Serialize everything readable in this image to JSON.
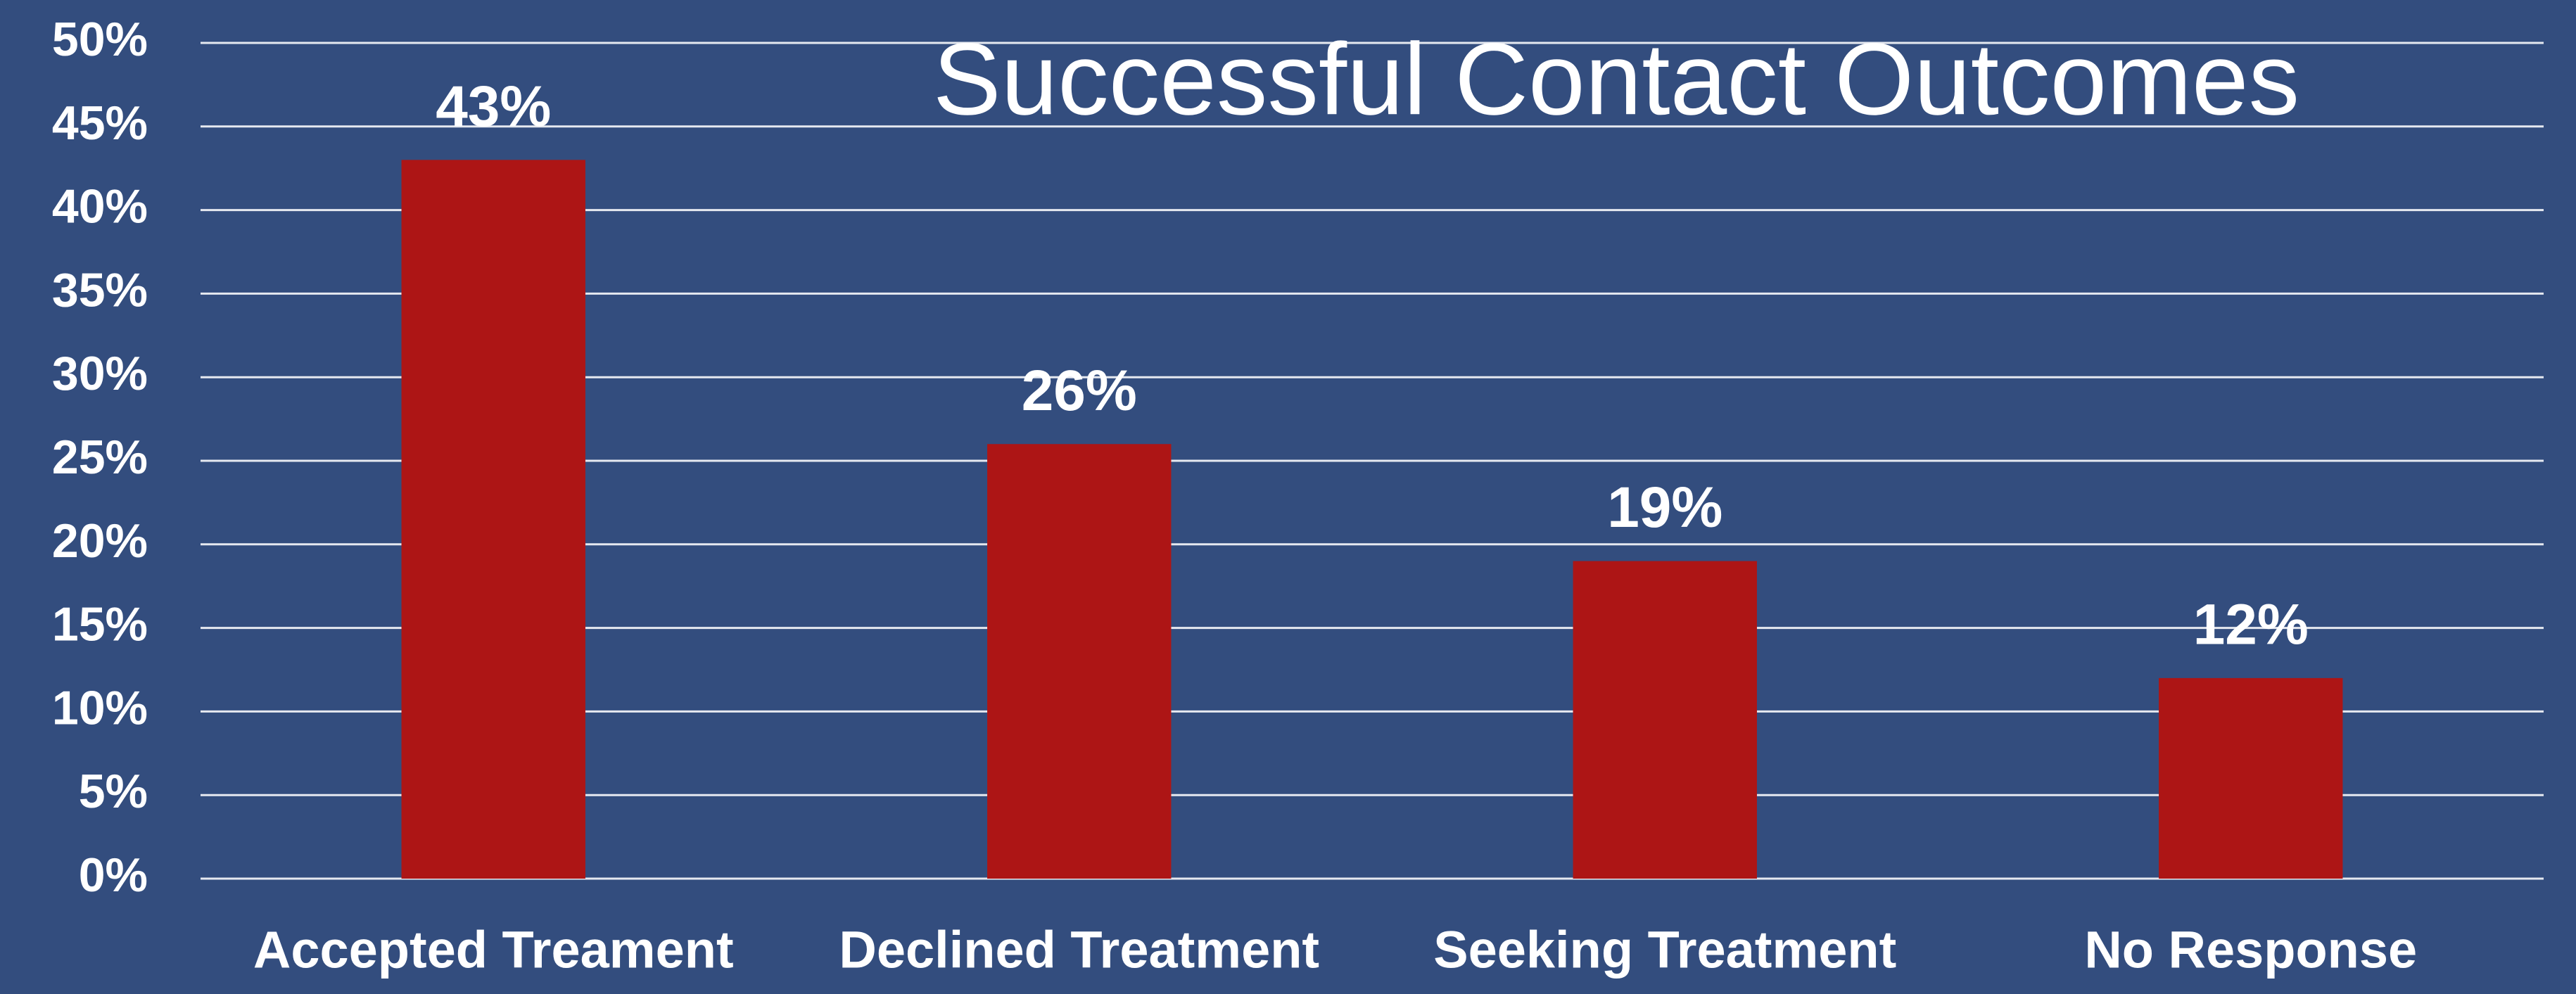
{
  "chart_data": {
    "type": "bar",
    "title": "Successful Contact Outcomes",
    "categories": [
      "Accepted Treament",
      "Declined Treatment",
      "Seeking Treatment",
      "No Response"
    ],
    "values": [
      43,
      26,
      19,
      12
    ],
    "value_labels": [
      "43%",
      "26%",
      "19%",
      "12%"
    ],
    "color": "#ad1515",
    "ylim": [
      0,
      50
    ],
    "yticks": [
      {
        "value": 0,
        "label": "0%"
      },
      {
        "value": 5,
        "label": "5%"
      },
      {
        "value": 10,
        "label": "10%"
      },
      {
        "value": 15,
        "label": "15%"
      },
      {
        "value": 20,
        "label": "20%"
      },
      {
        "value": 25,
        "label": "25%"
      },
      {
        "value": 30,
        "label": "30%"
      },
      {
        "value": 35,
        "label": "35%"
      },
      {
        "value": 40,
        "label": "40%"
      },
      {
        "value": 45,
        "label": "45%"
      },
      {
        "value": 50,
        "label": "50%"
      }
    ],
    "grid": true
  }
}
